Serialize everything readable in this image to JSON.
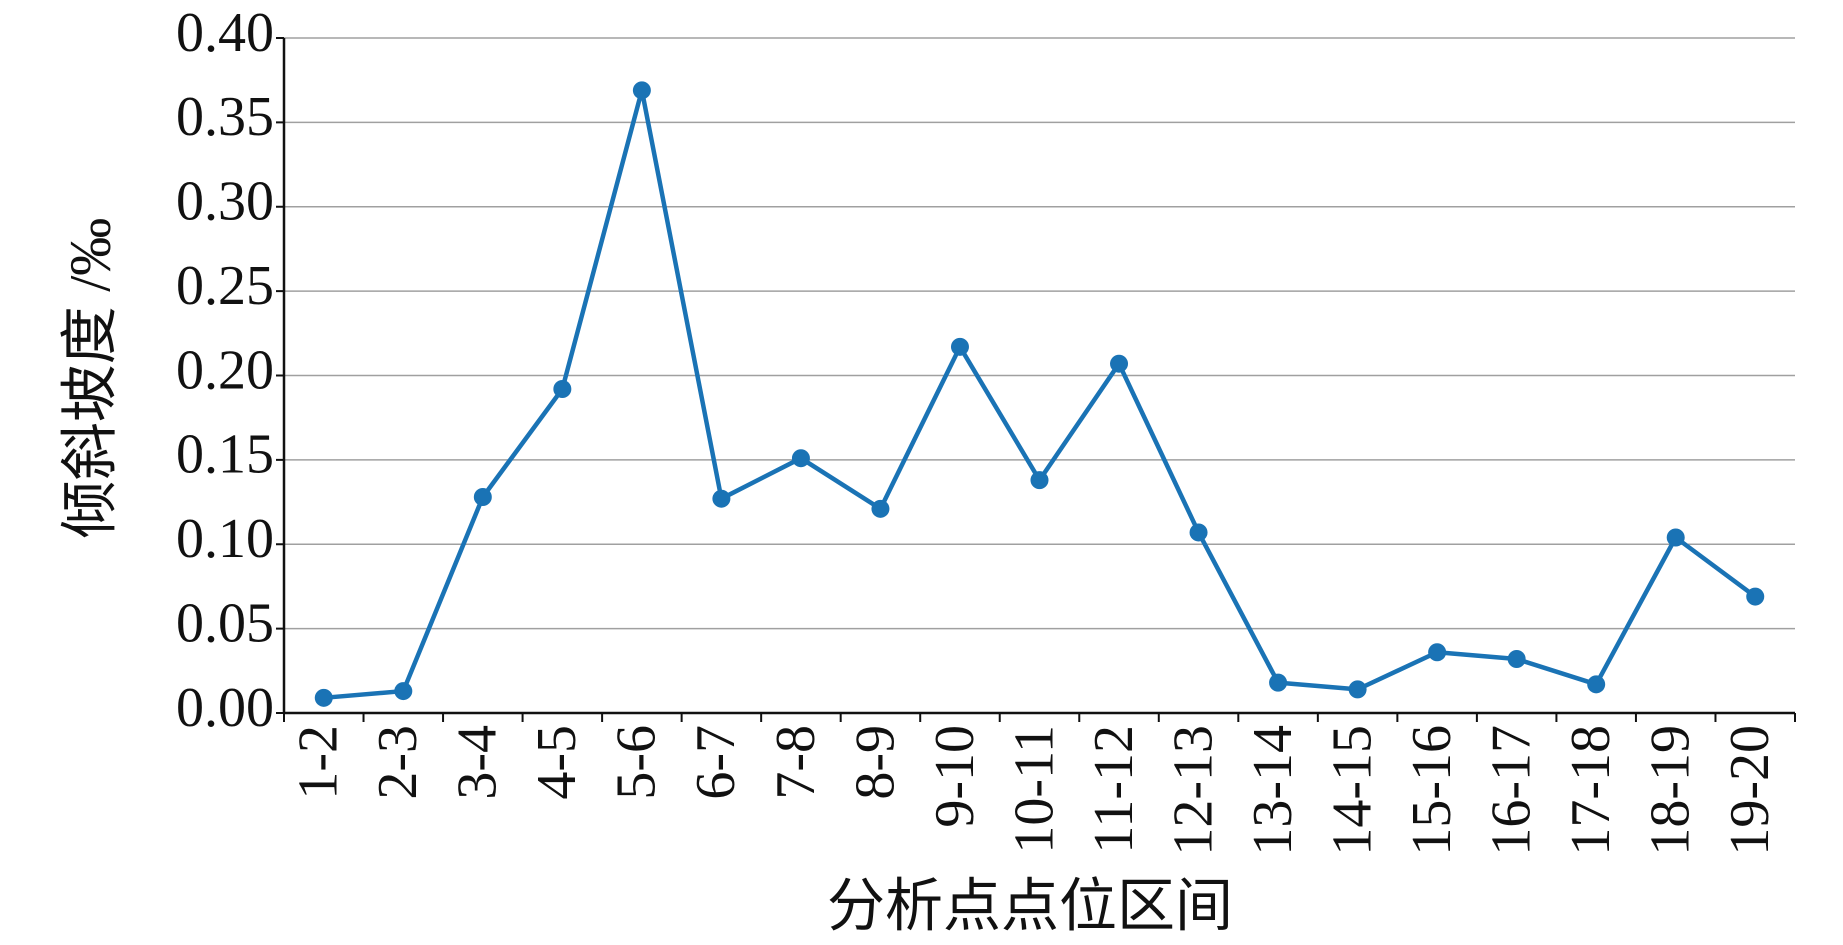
{
  "chart_data": {
    "type": "line",
    "x_label": "分析点点位区间",
    "y_label": "倾斜坡度 /‰",
    "categories": [
      "1-2",
      "2-3",
      "3-4",
      "4-5",
      "5-6",
      "6-7",
      "7-8",
      "8-9",
      "9-10",
      "10-11",
      "11-12",
      "12-13",
      "13-14",
      "14-15",
      "15-16",
      "16-17",
      "17-18",
      "18-19",
      "19-20"
    ],
    "series": [
      {
        "color": "#1a73b5",
        "values": [
          0.009,
          0.013,
          0.128,
          0.192,
          0.369,
          0.127,
          0.151,
          0.121,
          0.217,
          0.138,
          0.207,
          0.107,
          0.018,
          0.014,
          0.036,
          0.032,
          0.017,
          0.104,
          0.069
        ]
      }
    ],
    "ylim": [
      0,
      0.4
    ],
    "yticks": [
      {
        "value": 0,
        "label": "0.00"
      },
      {
        "value": 0.05,
        "label": "0.05"
      },
      {
        "value": 0.1,
        "label": "0.10"
      },
      {
        "value": 0.15,
        "label": "0.15"
      },
      {
        "value": 0.2,
        "label": "0.20"
      },
      {
        "value": 0.25,
        "label": "0.25"
      },
      {
        "value": 0.3,
        "label": "0.30"
      },
      {
        "value": 0.35,
        "label": "0.35"
      },
      {
        "value": 0.4,
        "label": "0.40"
      }
    ],
    "grid": true
  }
}
